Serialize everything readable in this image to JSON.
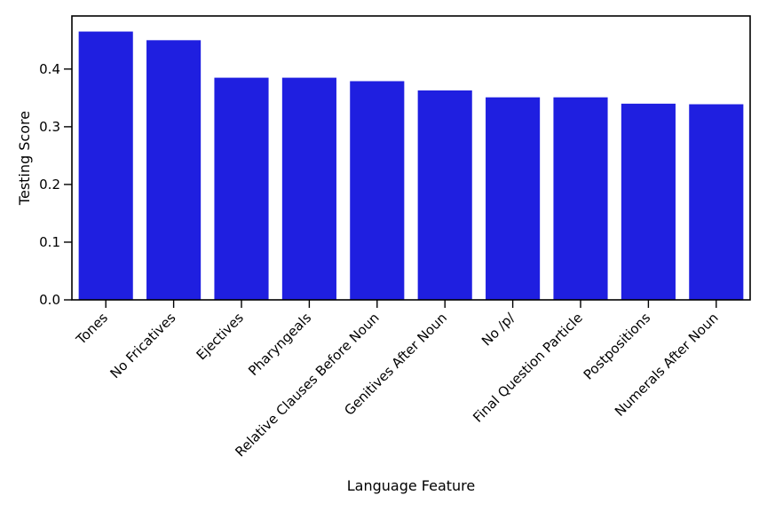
{
  "chart_data": {
    "type": "bar",
    "title": "",
    "xlabel": "Language Feature",
    "ylabel": "Testing Score",
    "categories": [
      "Tones",
      "No Fricatives",
      "Ejectives",
      "Pharyngeals",
      "Relative Clauses Before Noun",
      "Genitives After Noun",
      "No /p/",
      "Final Question Particle",
      "Postpositions",
      "Numerals After Noun"
    ],
    "values": [
      0.465,
      0.45,
      0.385,
      0.385,
      0.379,
      0.363,
      0.351,
      0.351,
      0.34,
      0.339
    ],
    "ylim": [
      0,
      0.492
    ],
    "yticks": [
      "0.0",
      "0.1",
      "0.2",
      "0.3",
      "0.4"
    ],
    "bar_color": "#1f1fe0",
    "grid": false,
    "legend": "none"
  }
}
